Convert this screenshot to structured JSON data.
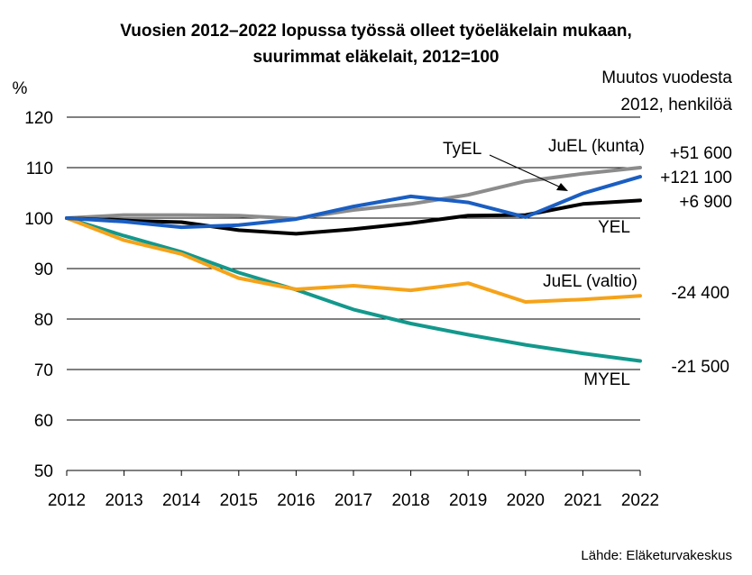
{
  "chart_data": {
    "type": "line",
    "title": [
      "Vuosien 2012–2022 lopussa työssä olleet työeläkelain mukaan,",
      "suurimmat eläkelait, 2012=100"
    ],
    "ylabel": "%",
    "xlabel": "",
    "right_header": [
      "Muutos vuodesta",
      "2012, henkilöä"
    ],
    "source": "Lähde: Eläketurvakeskus",
    "ylim": [
      50,
      120
    ],
    "yticks": [
      50,
      60,
      70,
      80,
      90,
      100,
      110,
      120
    ],
    "grid": true,
    "x": [
      "2012",
      "2013",
      "2014",
      "2015",
      "2016",
      "2017",
      "2018",
      "2019",
      "2020",
      "2021",
      "2022"
    ],
    "series": [
      {
        "name": "JuEL (kunta)",
        "color": "#8c8c8c",
        "change": "+51 600",
        "values": [
          100,
          100.6,
          100.6,
          100.5,
          99.9,
          101.6,
          102.8,
          104.6,
          107.3,
          108.8,
          110.0
        ]
      },
      {
        "name": "TyEL",
        "color": "#1a5ec2",
        "change": "+121 100",
        "values": [
          100,
          99.3,
          98.2,
          98.6,
          99.8,
          102.3,
          104.3,
          103.1,
          100.2,
          104.9,
          108.2
        ]
      },
      {
        "name": "YEL",
        "color": "#000000",
        "change": "+6 900",
        "values": [
          100,
          99.5,
          99.2,
          97.6,
          96.9,
          97.8,
          99.0,
          100.5,
          100.6,
          102.8,
          103.5
        ]
      },
      {
        "name": "JuEL (valtio)",
        "color": "#f5a31a",
        "change": "-24 400",
        "values": [
          100,
          95.6,
          92.9,
          88.1,
          85.9,
          86.6,
          85.7,
          87.1,
          83.4,
          83.9,
          84.6
        ]
      },
      {
        "name": "MYEL",
        "color": "#13988c",
        "change": "-21 500",
        "values": [
          100,
          96.5,
          93.3,
          89.2,
          85.8,
          81.9,
          79.1,
          76.9,
          74.9,
          73.2,
          71.7
        ]
      }
    ],
    "annotations": [
      {
        "text": "TyEL",
        "series": "TyEL",
        "arrow": true
      },
      {
        "text": "JuEL (kunta)",
        "series": "JuEL (kunta)"
      },
      {
        "text": "YEL",
        "series": "YEL"
      },
      {
        "text": "JuEL (valtio)",
        "series": "JuEL (valtio)"
      },
      {
        "text": "MYEL",
        "series": "MYEL"
      }
    ]
  }
}
